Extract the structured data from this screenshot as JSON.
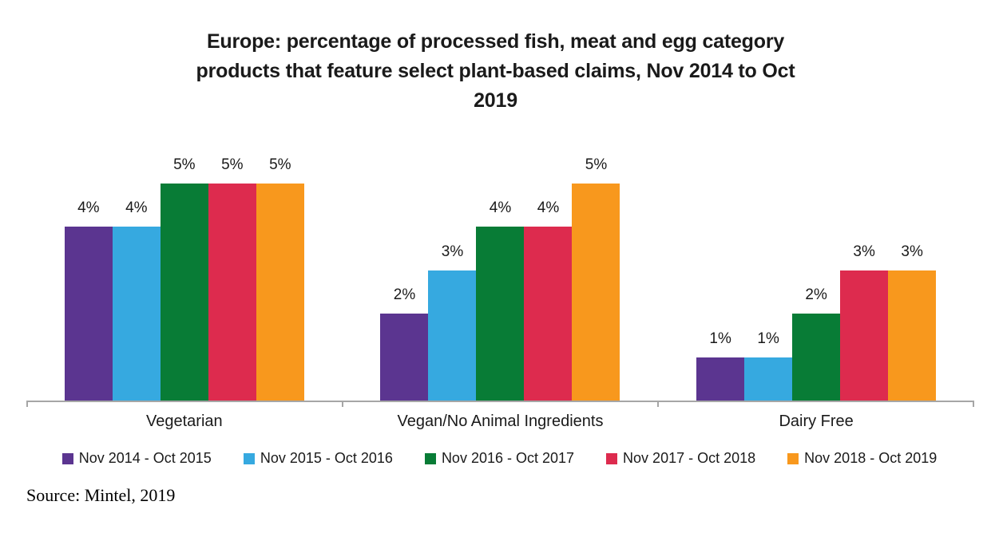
{
  "title": {
    "full": "Europe: percentage of processed fish, meat and egg category products that feature select plant-based claims, Nov 2014 to Oct 2019",
    "lines": [
      "Europe: percentage of processed fish, meat and egg category",
      "products that feature select plant-based claims, Nov 2014 to Oct",
      "2019"
    ]
  },
  "source_text": "Source: Mintel, 2019",
  "styles": {
    "axis_color": "#a6a6a6",
    "text_color": "#1a1a1a",
    "background": "#ffffff"
  },
  "chart_data": {
    "type": "bar",
    "title": "Europe: percentage of processed fish, meat and egg category products that feature select plant-based claims, Nov 2014 to Oct 2019",
    "categories": [
      "Vegetarian",
      "Vegan/No Animal Ingredients",
      "Dairy Free"
    ],
    "series": [
      {
        "name": "Nov 2014 - Oct 2015",
        "color": "#5B3590",
        "values": [
          4,
          2,
          1
        ]
      },
      {
        "name": "Nov 2015 - Oct 2016",
        "color": "#36A9E0",
        "values": [
          4,
          3,
          1
        ]
      },
      {
        "name": "Nov 2016 - Oct 2017",
        "color": "#087C36",
        "values": [
          5,
          4,
          2
        ]
      },
      {
        "name": "Nov 2017 - Oct 2018",
        "color": "#DD2B4E",
        "values": [
          5,
          4,
          3
        ]
      },
      {
        "name": "Nov 2018 - Oct 2019",
        "color": "#F8981D",
        "values": [
          5,
          5,
          3
        ]
      }
    ],
    "value_suffix": "%",
    "data_labels_shown": true,
    "ylim": [
      0,
      5.83
    ],
    "y_axis_visible": false,
    "x_axis_visible": true,
    "grid": false,
    "legend_position": "bottom",
    "source": "Source: Mintel, 2019"
  }
}
